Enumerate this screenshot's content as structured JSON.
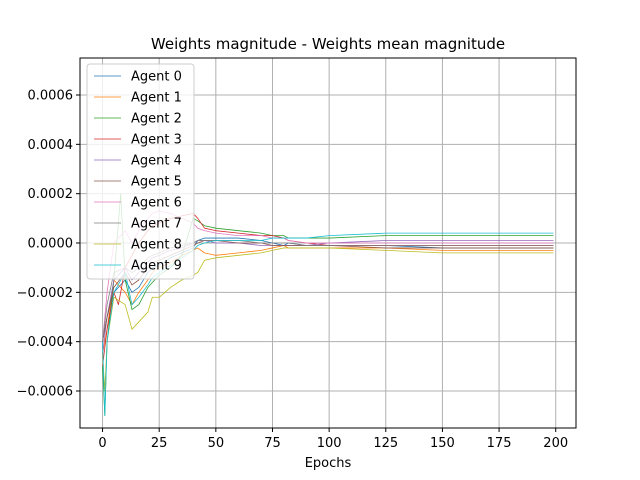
{
  "chart_data": {
    "type": "line",
    "title": "Weights magnitude - Weights mean magnitude",
    "xlabel": "Epochs",
    "ylabel": "",
    "xlim": [
      -9.95,
      208.95
    ],
    "ylim": [
      -0.00075,
      0.00075
    ],
    "xticks": [
      0,
      25,
      50,
      75,
      100,
      125,
      150,
      175,
      200
    ],
    "xtick_labels": [
      "0",
      "25",
      "50",
      "75",
      "100",
      "125",
      "150",
      "175",
      "200"
    ],
    "yticks": [
      -0.0006,
      -0.0004,
      -0.0002,
      0.0,
      0.0002,
      0.0004,
      0.0006
    ],
    "ytick_labels": [
      "−0.0006",
      "−0.0004",
      "−0.0002",
      "0.0000",
      "0.0002",
      "0.0004",
      "0.0006"
    ],
    "grid": true,
    "legend": "upper-left",
    "series": [
      {
        "name": "Agent 0",
        "color": "#1f77b4",
        "x": [
          0,
          2,
          5,
          10,
          13,
          16,
          20,
          22,
          25,
          30,
          35,
          40,
          42,
          45,
          50,
          60,
          70,
          75,
          80,
          82,
          90,
          100,
          125,
          150,
          175,
          199
        ],
        "y": [
          -0.0004,
          -0.0003,
          -0.0002,
          -0.00015,
          -0.0002,
          -0.00018,
          -0.00012,
          -0.0001,
          -9e-05,
          -6e-05,
          -4e-05,
          -2e-05,
          1e-05,
          2e-05,
          2e-05,
          2e-05,
          1e-05,
          0.0,
          -1e-05,
          0.0,
          -1e-05,
          -1e-05,
          -1e-05,
          -2e-05,
          -2e-05,
          -2e-05
        ]
      },
      {
        "name": "Agent 1",
        "color": "#ff7f0e",
        "x": [
          0,
          2,
          5,
          10,
          13,
          16,
          20,
          22,
          25,
          30,
          35,
          40,
          42,
          45,
          50,
          60,
          70,
          75,
          80,
          82,
          90,
          100,
          125,
          150,
          175,
          199
        ],
        "y": [
          -0.00045,
          -0.00035,
          -0.00015,
          -0.0002,
          -0.00025,
          -0.0002,
          -0.00015,
          -0.00012,
          -0.0001,
          -8e-05,
          -5e-05,
          -3e-05,
          -2e-05,
          -4e-05,
          -5e-05,
          -4e-05,
          -3e-05,
          -2e-05,
          -1e-05,
          -2e-05,
          -2e-05,
          -2e-05,
          -2e-05,
          -3e-05,
          -3e-05,
          -3e-05
        ]
      },
      {
        "name": "Agent 2",
        "color": "#2ca02c",
        "x": [
          0,
          1,
          2,
          5,
          8,
          10,
          13,
          16,
          20,
          22,
          25,
          30,
          35,
          40,
          42,
          45,
          50,
          60,
          70,
          75,
          80,
          82,
          90,
          100,
          125,
          150,
          175,
          199
        ],
        "y": [
          -0.0005,
          -0.0007,
          -0.0004,
          -0.00015,
          0.0002,
          -0.00015,
          -0.00027,
          -0.00025,
          -0.00018,
          -0.00016,
          -0.00013,
          -0.0001,
          -5e-05,
          0.0001,
          9e-05,
          7e-05,
          6e-05,
          5e-05,
          4e-05,
          3e-05,
          3e-05,
          2e-05,
          2e-05,
          2e-05,
          3e-05,
          3e-05,
          3e-05,
          3e-05
        ]
      },
      {
        "name": "Agent 3",
        "color": "#d62728",
        "x": [
          0,
          2,
          5,
          7,
          10,
          13,
          16,
          20,
          22,
          25,
          30,
          35,
          40,
          42,
          45,
          50,
          60,
          70,
          75,
          80,
          82,
          90,
          100,
          125,
          150,
          175,
          199
        ],
        "y": [
          -0.0005,
          -0.00035,
          -0.0002,
          -0.00025,
          -0.0001,
          -5e-05,
          0.0,
          5e-05,
          7e-05,
          8e-05,
          0.0001,
          0.00011,
          0.00012,
          0.0001,
          6e-05,
          5e-05,
          4e-05,
          3e-05,
          3e-05,
          2e-05,
          1e-05,
          0.0,
          -1e-05,
          -1e-05,
          -1e-05,
          -1e-05,
          -1e-05
        ]
      },
      {
        "name": "Agent 4",
        "color": "#9467bd",
        "x": [
          0,
          2,
          5,
          10,
          13,
          16,
          20,
          22,
          25,
          30,
          35,
          40,
          42,
          45,
          50,
          60,
          70,
          75,
          80,
          82,
          90,
          100,
          125,
          150,
          175,
          199
        ],
        "y": [
          -0.00045,
          -0.0003,
          -0.00015,
          -0.0001,
          -0.00015,
          -0.00012,
          -8e-05,
          -6e-05,
          -5e-05,
          -3e-05,
          -2e-05,
          0.0,
          1e-05,
          1e-05,
          0.0,
          0.0,
          -1e-05,
          -1e-05,
          -1e-05,
          -1e-05,
          -1e-05,
          0.0,
          1e-05,
          1e-05,
          1e-05,
          1e-05
        ]
      },
      {
        "name": "Agent 5",
        "color": "#8c564b",
        "x": [
          0,
          2,
          5,
          10,
          13,
          16,
          20,
          22,
          25,
          30,
          35,
          40,
          42,
          45,
          50,
          60,
          70,
          75,
          80,
          82,
          90,
          100,
          125,
          150,
          175,
          199
        ],
        "y": [
          -0.0004,
          -0.0003,
          -0.00018,
          -0.00012,
          -0.00017,
          -0.00015,
          -0.0001,
          -8e-05,
          -7e-05,
          -5e-05,
          -3e-05,
          -1e-05,
          0.0,
          1e-05,
          1e-05,
          0.0,
          0.0,
          -1e-05,
          -1e-05,
          -1e-05,
          -1e-05,
          -1e-05,
          -2e-05,
          -2e-05,
          -2e-05,
          -2e-05
        ]
      },
      {
        "name": "Agent 6",
        "color": "#e377c2",
        "x": [
          0,
          2,
          5,
          10,
          13,
          16,
          20,
          22,
          25,
          30,
          35,
          40,
          42,
          45,
          50,
          60,
          70,
          75,
          80,
          82,
          90,
          100,
          125,
          150,
          175,
          199
        ],
        "y": [
          -0.0004,
          -0.0002,
          0.0,
          5e-05,
          0.0,
          5e-05,
          0.0001,
          0.00012,
          0.00013,
          0.00012,
          0.0001,
          8e-05,
          6e-05,
          5e-05,
          4e-05,
          3e-05,
          3e-05,
          2e-05,
          2e-05,
          1e-05,
          0.0,
          0.0,
          0.0,
          0.0,
          0.0,
          0.0
        ]
      },
      {
        "name": "Agent 7",
        "color": "#7f7f7f",
        "x": [
          0,
          2,
          5,
          10,
          13,
          16,
          20,
          22,
          25,
          30,
          35,
          40,
          42,
          45,
          50,
          60,
          70,
          75,
          80,
          82,
          90,
          100,
          125,
          150,
          175,
          199
        ],
        "y": [
          -0.0004,
          -0.00025,
          -0.00012,
          -0.0001,
          -0.00012,
          -0.0001,
          -6e-05,
          -5e-05,
          -4e-05,
          -2e-05,
          -1e-05,
          0.0,
          1e-05,
          1e-05,
          1e-05,
          1e-05,
          0.0,
          0.0,
          0.0,
          0.0,
          -1e-05,
          -1e-05,
          -1e-05,
          -1e-05,
          -1e-05,
          -1e-05
        ]
      },
      {
        "name": "Agent 8",
        "color": "#bcbd22",
        "x": [
          0,
          1,
          2,
          5,
          10,
          13,
          16,
          20,
          22,
          25,
          30,
          35,
          40,
          42,
          45,
          50,
          60,
          70,
          75,
          80,
          82,
          90,
          100,
          125,
          150,
          175,
          199
        ],
        "y": [
          -0.00045,
          -0.0006,
          -0.0004,
          -0.00022,
          -0.00025,
          -0.00035,
          -0.00032,
          -0.00028,
          -0.00022,
          -0.00022,
          -0.00018,
          -0.00015,
          -0.00013,
          -0.00012,
          -7e-05,
          -6e-05,
          -5e-05,
          -4e-05,
          -3e-05,
          -2e-05,
          -2e-05,
          -2e-05,
          -2e-05,
          -3e-05,
          -4e-05,
          -4e-05,
          -4e-05
        ]
      },
      {
        "name": "Agent 9",
        "color": "#17becf",
        "x": [
          0,
          1,
          2,
          5,
          10,
          13,
          16,
          20,
          22,
          25,
          30,
          35,
          40,
          42,
          45,
          50,
          60,
          70,
          75,
          80,
          82,
          90,
          100,
          125,
          150,
          175,
          199
        ],
        "y": [
          -0.0004,
          -0.0007,
          -0.0004,
          -0.0002,
          -0.00012,
          -0.00025,
          -0.00022,
          -0.00017,
          -0.00014,
          -0.00012,
          -9e-05,
          -6e-05,
          -3e-05,
          -1e-05,
          0.0,
          1e-05,
          1e-05,
          1e-05,
          2e-05,
          2e-05,
          2e-05,
          2e-05,
          3e-05,
          4e-05,
          4e-05,
          4e-05,
          4e-05
        ]
      }
    ]
  }
}
